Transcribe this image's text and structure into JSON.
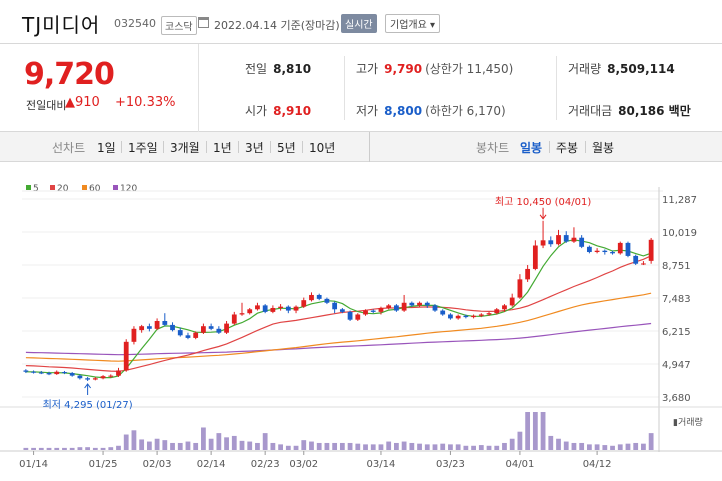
{
  "header": {
    "title": "TJ미디어",
    "code": "032540",
    "market": "코스닥",
    "date": "2022.04.14 기준(장마감)",
    "realtime_button": "실시간",
    "company_button": "기업개요 ▾"
  },
  "price": {
    "current": "9,720",
    "change_label": "전일대비",
    "change": "▲910",
    "change_pct": "+10.33%"
  },
  "stats": {
    "prev_close": {
      "label": "전일",
      "value": "8,810"
    },
    "high": {
      "label": "고가",
      "value": "9,790",
      "sub": "(상한가 11,450)"
    },
    "volume": {
      "label": "거래량",
      "value": "8,509,114"
    },
    "open": {
      "label": "시가",
      "value": "8,910"
    },
    "low": {
      "label": "저가",
      "value": "8,800",
      "sub": "(하한가 6,170)"
    },
    "amount": {
      "label": "거래대금",
      "value": "80,186 백만"
    }
  },
  "tabs": {
    "line_chart": "선차트",
    "periods": [
      "1일",
      "1주일",
      "3개월",
      "1년",
      "3년",
      "5년",
      "10년"
    ],
    "candle_chart": "봉차트",
    "candle_periods": [
      "일봉",
      "주봉",
      "월봉"
    ],
    "active_candle": "일봉"
  },
  "legend": [
    {
      "label": "5",
      "color": "#44aa33"
    },
    {
      "label": "20",
      "color": "#e04444"
    },
    {
      "label": "60",
      "color": "#f08a20"
    },
    {
      "label": "120",
      "color": "#9955bb"
    }
  ],
  "volume_label": "거래량",
  "colors": {
    "up": "#e02020",
    "down": "#1a5ec9"
  },
  "chart_data": {
    "type": "candlestick",
    "y_ticks": [
      11287,
      10019,
      8751,
      7483,
      6215,
      4947,
      3680
    ],
    "ylim": [
      3680,
      11287
    ],
    "x_ticks": [
      "01/14",
      "01/25",
      "02/03",
      "02/14",
      "02/23",
      "03/02",
      "03/14",
      "03/23",
      "04/01",
      "04/12"
    ],
    "annotations": {
      "high": "최고 10,450 (04/01)",
      "low": "최저 4,295 (01/27)"
    },
    "candles": [
      [
        4700,
        4650,
        4750,
        4600,
        0.3
      ],
      [
        4650,
        4620,
        4700,
        4580,
        0.3
      ],
      [
        4620,
        4600,
        4680,
        4560,
        0.3
      ],
      [
        4600,
        4550,
        4650,
        4520,
        0.3
      ],
      [
        4560,
        4650,
        4700,
        4530,
        0.3
      ],
      [
        4640,
        4600,
        4680,
        4560,
        0.3
      ],
      [
        4600,
        4500,
        4640,
        4460,
        0.3
      ],
      [
        4500,
        4400,
        4550,
        4350,
        0.4
      ],
      [
        4400,
        4350,
        4450,
        4295,
        0.4
      ],
      [
        4350,
        4400,
        4450,
        4320,
        0.3
      ],
      [
        4400,
        4480,
        4520,
        4360,
        0.3
      ],
      [
        4480,
        4500,
        4550,
        4420,
        0.4
      ],
      [
        4500,
        4700,
        4800,
        4450,
        0.6
      ],
      [
        4700,
        5800,
        5900,
        4650,
        2.2
      ],
      [
        5800,
        6300,
        6400,
        5700,
        2.8
      ],
      [
        6250,
        6400,
        6450,
        6150,
        1.5
      ],
      [
        6400,
        6300,
        6500,
        6200,
        1.2
      ],
      [
        6300,
        6600,
        6700,
        6250,
        1.6
      ],
      [
        6600,
        6450,
        6900,
        6400,
        1.4
      ],
      [
        6450,
        6250,
        6550,
        6200,
        1.0
      ],
      [
        6250,
        6050,
        6350,
        6000,
        1.0
      ],
      [
        6050,
        5950,
        6150,
        5900,
        1.2
      ],
      [
        5950,
        6150,
        6200,
        5900,
        1.0
      ],
      [
        6150,
        6400,
        6500,
        6100,
        3.2
      ],
      [
        6400,
        6300,
        6500,
        6250,
        1.6
      ],
      [
        6300,
        6150,
        6400,
        6100,
        2.4
      ],
      [
        6150,
        6500,
        6600,
        6100,
        1.8
      ],
      [
        6500,
        6850,
        6950,
        6450,
        2.0
      ],
      [
        6850,
        6900,
        7300,
        6800,
        1.3
      ],
      [
        6900,
        7050,
        7100,
        6850,
        1.2
      ],
      [
        7050,
        7200,
        7300,
        7000,
        1.0
      ],
      [
        7200,
        6950,
        7250,
        6900,
        2.4
      ],
      [
        6950,
        7100,
        7200,
        6900,
        1.0
      ],
      [
        7100,
        7150,
        7250,
        7000,
        0.8
      ],
      [
        7150,
        7000,
        7200,
        6900,
        0.6
      ],
      [
        7000,
        7150,
        7200,
        6900,
        0.6
      ],
      [
        7150,
        7400,
        7500,
        7100,
        1.4
      ],
      [
        7400,
        7600,
        7700,
        7350,
        1.2
      ],
      [
        7600,
        7450,
        7650,
        7400,
        1.0
      ],
      [
        7450,
        7300,
        7500,
        7250,
        1.0
      ],
      [
        7300,
        7050,
        7350,
        6900,
        1.0
      ],
      [
        7050,
        6950,
        7100,
        6900,
        1.0
      ],
      [
        6950,
        6650,
        7000,
        6600,
        1.0
      ],
      [
        6650,
        6850,
        6900,
        6600,
        0.9
      ],
      [
        6850,
        7000,
        7050,
        6800,
        0.8
      ],
      [
        7000,
        6950,
        7050,
        6900,
        0.8
      ],
      [
        6950,
        7100,
        7150,
        6850,
        0.8
      ],
      [
        7100,
        7200,
        7250,
        7050,
        1.2
      ],
      [
        7200,
        7000,
        7250,
        6950,
        1.0
      ],
      [
        7000,
        7300,
        7600,
        6950,
        1.2
      ],
      [
        7300,
        7200,
        7350,
        7150,
        1.0
      ],
      [
        7200,
        7300,
        7350,
        7150,
        0.9
      ],
      [
        7300,
        7200,
        7350,
        7100,
        0.8
      ],
      [
        7200,
        7000,
        7250,
        6950,
        0.8
      ],
      [
        7000,
        6850,
        7050,
        6800,
        0.9
      ],
      [
        6850,
        6700,
        6900,
        6650,
        0.8
      ],
      [
        6700,
        6800,
        6850,
        6650,
        0.8
      ],
      [
        6800,
        6750,
        6850,
        6700,
        0.6
      ],
      [
        6750,
        6800,
        6850,
        6700,
        0.6
      ],
      [
        6800,
        6850,
        6900,
        6750,
        0.7
      ],
      [
        6850,
        6900,
        6950,
        6800,
        0.6
      ],
      [
        6900,
        7050,
        7100,
        6850,
        0.6
      ],
      [
        7050,
        7200,
        7250,
        6950,
        1.0
      ],
      [
        7200,
        7500,
        7650,
        7150,
        1.6
      ],
      [
        7500,
        8200,
        8400,
        7450,
        2.6
      ],
      [
        8200,
        8600,
        8750,
        8100,
        5.4
      ],
      [
        8600,
        9500,
        9700,
        8550,
        5.4
      ],
      [
        9500,
        9700,
        10450,
        9400,
        5.4
      ],
      [
        9700,
        9550,
        9850,
        9450,
        2.0
      ],
      [
        9550,
        9900,
        10100,
        9500,
        1.6
      ],
      [
        9900,
        9650,
        10050,
        9600,
        1.2
      ],
      [
        9650,
        9800,
        10200,
        9600,
        1.0
      ],
      [
        9800,
        9450,
        9900,
        9400,
        1.0
      ],
      [
        9450,
        9250,
        9500,
        9200,
        0.8
      ],
      [
        9250,
        9300,
        9400,
        9200,
        0.8
      ],
      [
        9300,
        9250,
        9350,
        9150,
        0.7
      ],
      [
        9250,
        9200,
        9300,
        9150,
        0.6
      ],
      [
        9200,
        9600,
        9650,
        9150,
        0.8
      ],
      [
        9600,
        9100,
        9650,
        9050,
        0.9
      ],
      [
        9100,
        8800,
        9150,
        8750,
        1.0
      ],
      [
        8800,
        8810,
        8900,
        8750,
        0.9
      ],
      [
        8910,
        9720,
        9790,
        8800,
        2.4
      ]
    ]
  }
}
